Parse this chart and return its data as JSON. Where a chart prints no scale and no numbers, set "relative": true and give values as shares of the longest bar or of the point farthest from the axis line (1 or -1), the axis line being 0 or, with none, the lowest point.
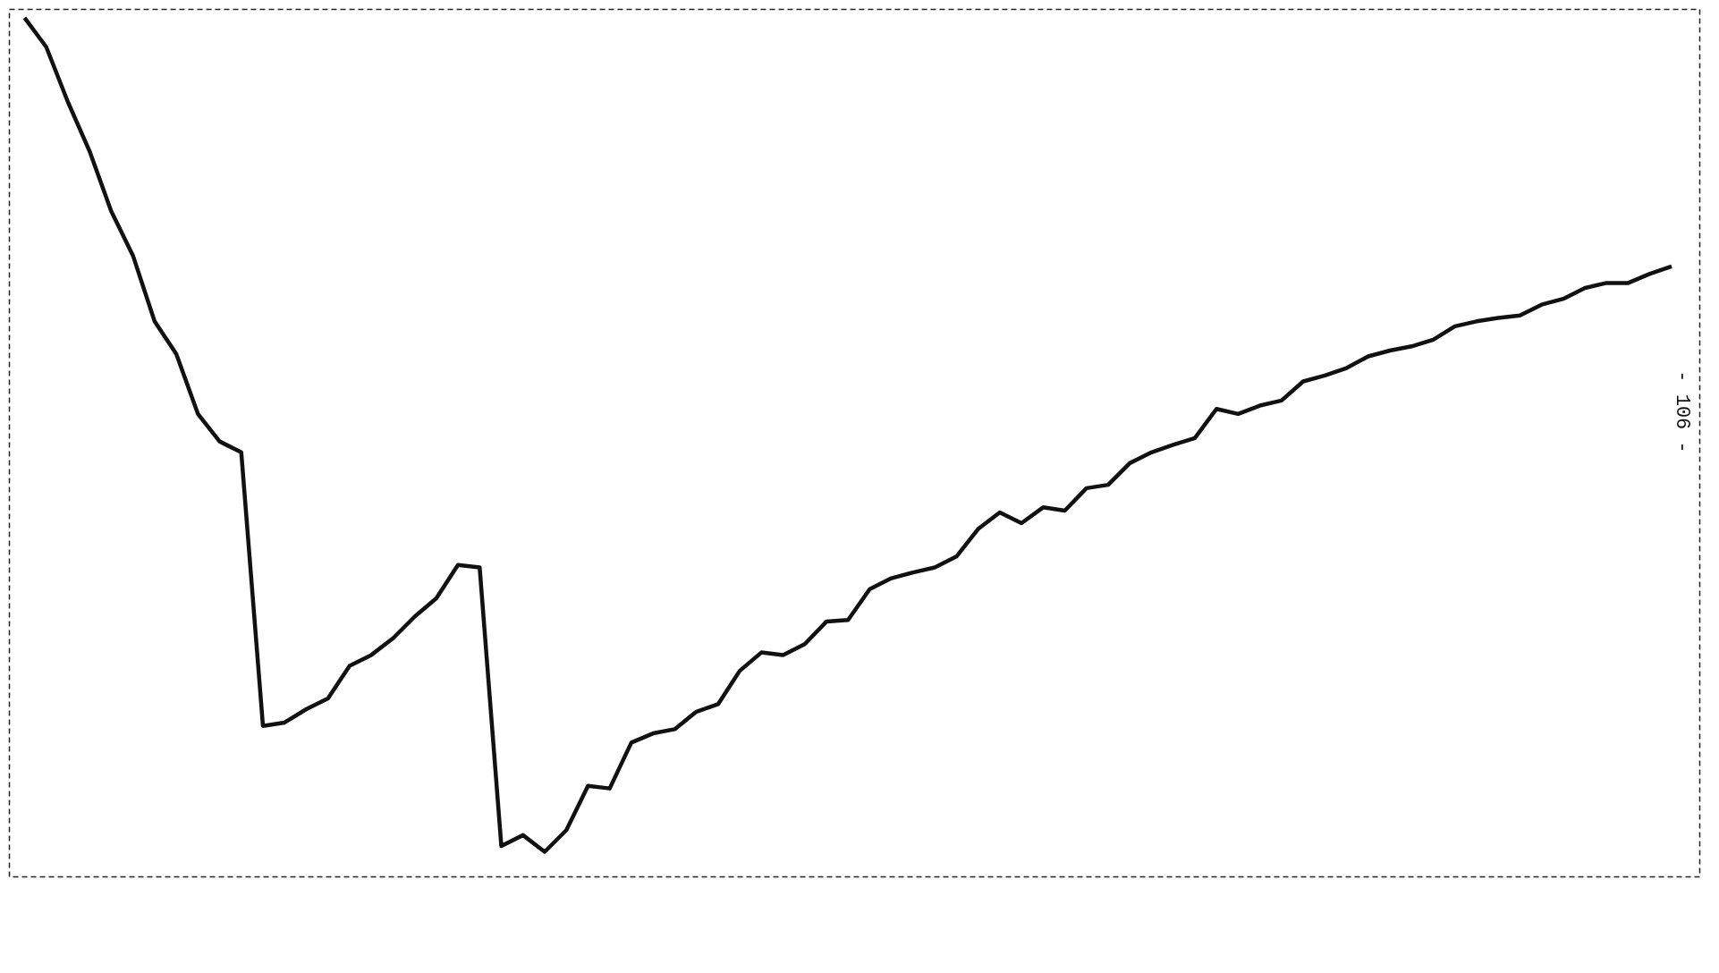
{
  "chart_data": {
    "type": "line",
    "relative": true,
    "categories": [
      null,
      null,
      null,
      null,
      null,
      null,
      null,
      null,
      null,
      null,
      null,
      null,
      null,
      null,
      null,
      null,
      null,
      null,
      null,
      null,
      null,
      null,
      null,
      null,
      null,
      null,
      null,
      null,
      null,
      null,
      null,
      null,
      null,
      null,
      null,
      null,
      null,
      null,
      null,
      null,
      null,
      null,
      null,
      null,
      null,
      null,
      null,
      null,
      null,
      null,
      null,
      null,
      null,
      null,
      null,
      null,
      null,
      null,
      null,
      null,
      null,
      null,
      null,
      null,
      null,
      null,
      null,
      null,
      null,
      null,
      null,
      null,
      null,
      null,
      null,
      null,
      null
    ],
    "series": [
      {
        "color": "#111111",
        "values": [
          1.0,
          0.965,
          0.899,
          0.84,
          0.768,
          0.715,
          0.636,
          0.597,
          0.525,
          0.492,
          0.479,
          0.151,
          0.155,
          0.171,
          0.184,
          0.223,
          0.236,
          0.256,
          0.282,
          0.304,
          0.344,
          0.341,
          0.007,
          0.02,
          0,
          0.026,
          0.079,
          0.076,
          0.131,
          0.142,
          0.147,
          0.168,
          0.177,
          0.217,
          0.239,
          0.236,
          0.249,
          0.276,
          0.278,
          0.315,
          0.328,
          0.335,
          0.341,
          0.354,
          0.387,
          0.407,
          0.394,
          0.413,
          0.409,
          0.436,
          0.44,
          0.466,
          0.479,
          0.488,
          0.496,
          0.531,
          0.525,
          0.535,
          0.541,
          0.564,
          0.571,
          0.58,
          0.594,
          0.601,
          0.606,
          0.614,
          0.63,
          0.636,
          0.64,
          0.643,
          0.656,
          0.663,
          0.676,
          0.682,
          0.682,
          0.693,
          0.702
        ]
      }
    ],
    "annotations": [
      "- 106 -"
    ]
  }
}
